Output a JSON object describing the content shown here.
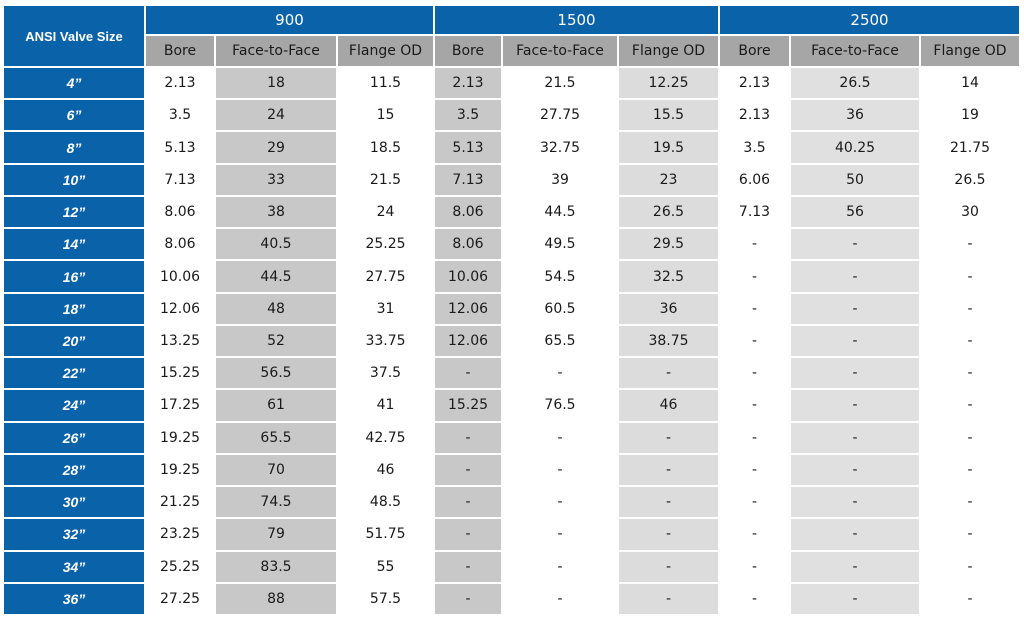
{
  "table": {
    "corner": "ANSI Valve Size",
    "groups": [
      "900",
      "1500",
      "2500"
    ],
    "subheaders": [
      "Bore",
      "Face-to-Face",
      "Flange OD",
      "Bore",
      "Face-to-Face",
      "Flange OD",
      "Bore",
      "Face-to-Face",
      "Flange OD"
    ],
    "rows": [
      [
        "4”",
        "2.13",
        "18",
        "11.5",
        "2.13",
        "21.5",
        "12.25",
        "2.13",
        "26.5",
        "14"
      ],
      [
        "6”",
        "3.5",
        "24",
        "15",
        "3.5",
        "27.75",
        "15.5",
        "2.13",
        "36",
        "19"
      ],
      [
        "8”",
        "5.13",
        "29",
        "18.5",
        "5.13",
        "32.75",
        "19.5",
        "3.5",
        "40.25",
        "21.75"
      ],
      [
        "10”",
        "7.13",
        "33",
        "21.5",
        "7.13",
        "39",
        "23",
        "6.06",
        "50",
        "26.5"
      ],
      [
        "12”",
        "8.06",
        "38",
        "24",
        "8.06",
        "44.5",
        "26.5",
        "7.13",
        "56",
        "30"
      ],
      [
        "14”",
        "8.06",
        "40.5",
        "25.25",
        "8.06",
        "49.5",
        "29.5",
        "-",
        "-",
        "-"
      ],
      [
        "16”",
        "10.06",
        "44.5",
        "27.75",
        "10.06",
        "54.5",
        "32.5",
        "-",
        "-",
        "-"
      ],
      [
        "18”",
        "12.06",
        "48",
        "31",
        "12.06",
        "60.5",
        "36",
        "-",
        "-",
        "-"
      ],
      [
        "20”",
        "13.25",
        "52",
        "33.75",
        "12.06",
        "65.5",
        "38.75",
        "-",
        "-",
        "-"
      ],
      [
        "22”",
        "15.25",
        "56.5",
        "37.5",
        "-",
        "-",
        "-",
        "-",
        "-",
        "-"
      ],
      [
        "24”",
        "17.25",
        "61",
        "41",
        "15.25",
        "76.5",
        "46",
        "-",
        "-",
        "-"
      ],
      [
        "26”",
        "19.25",
        "65.5",
        "42.75",
        "-",
        "-",
        "-",
        "-",
        "-",
        "-"
      ],
      [
        "28”",
        "19.25",
        "70",
        "46",
        "-",
        "-",
        "-",
        "-",
        "-",
        "-"
      ],
      [
        "30”",
        "21.25",
        "74.5",
        "48.5",
        "-",
        "-",
        "-",
        "-",
        "-",
        "-"
      ],
      [
        "32”",
        "23.25",
        "79",
        "51.75",
        "-",
        "-",
        "-",
        "-",
        "-",
        "-"
      ],
      [
        "34”",
        "25.25",
        "83.5",
        "55",
        "-",
        "-",
        "-",
        "-",
        "-",
        "-"
      ],
      [
        "36”",
        "27.25",
        "88",
        "57.5",
        "-",
        "-",
        "-",
        "-",
        "-",
        "-"
      ]
    ]
  }
}
